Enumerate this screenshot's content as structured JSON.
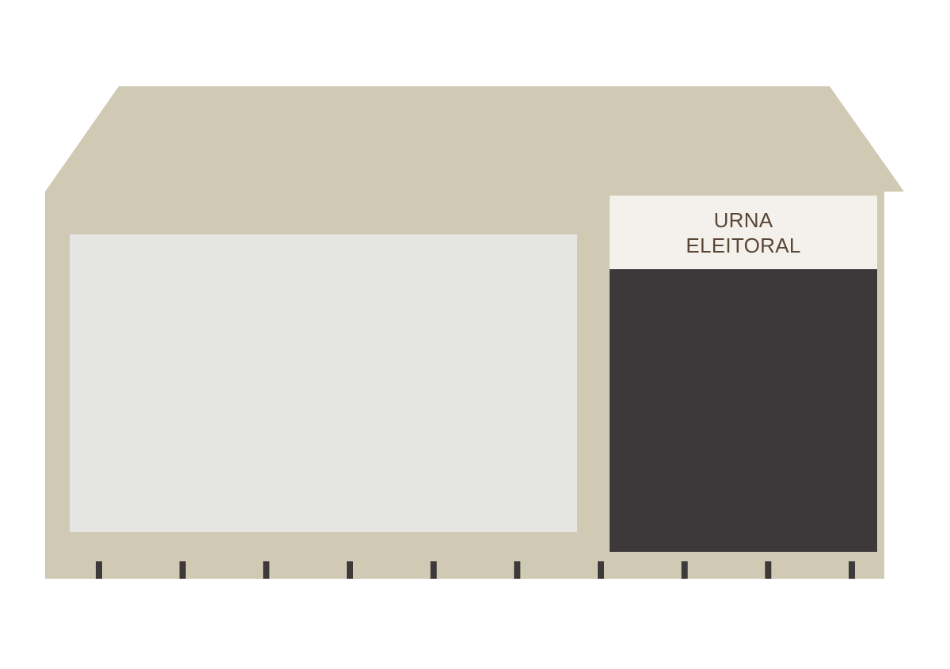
{
  "device": {
    "label_line_1": "URNA",
    "label_line_2": "ELEITORAL",
    "foot_count": 10,
    "colors": {
      "body": "#d0cab4",
      "screen": "#e5e5e4",
      "keypad": "#3d3839",
      "label_panel": "#f4f1ec",
      "label_text": "#5a4636",
      "feet": "#3d3839",
      "background": "#ffffff"
    }
  }
}
